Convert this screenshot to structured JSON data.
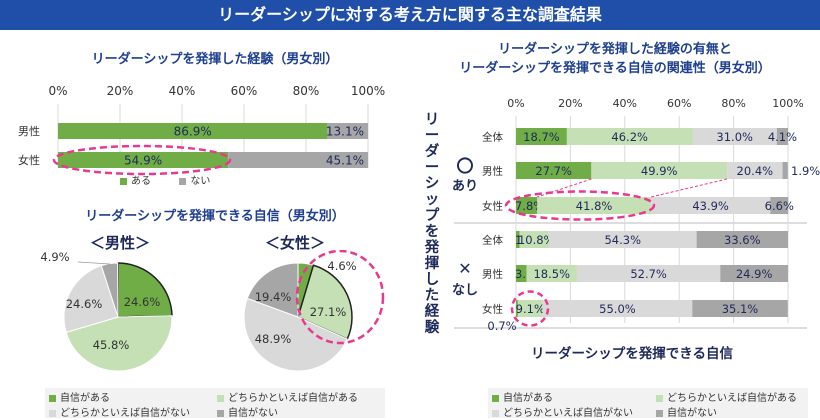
{
  "banner": "リーダーシップに対する考え方に関する主な調査結果",
  "chart1": {
    "title": "リーダーシップを発揮した経験（男女別）",
    "legend": [
      "ある",
      "ない"
    ]
  },
  "chart2": {
    "title": "リーダーシップを発揮できる自信（男女別）",
    "male_label": "＜男性＞",
    "female_label": "＜女性＞"
  },
  "chart3": {
    "title_line1": "リーダーシップを発揮した経験の有無と",
    "title_line2": "リーダーシップを発揮できる自信の関連性（男女別）",
    "y_title": "リーダーシップを発揮した経験",
    "group_yes": "〇 あり",
    "group_no": "✕ なし",
    "x_title": "リーダーシップを発揮できる自信"
  },
  "legend_bottom": [
    "自信がある",
    "どちらかといえば自信がある",
    "どちらかといえば自信がない",
    "自信がない"
  ],
  "colors": {
    "green": "#70ad47",
    "lightgreen": "#c5e0b4",
    "lightgray": "#d9d9d9",
    "gray": "#a6a6a6",
    "pink": "#e8398f",
    "banner": "#1f4fa8"
  },
  "chart_data": [
    {
      "type": "bar",
      "orientation": "horizontal-stacked",
      "title": "リーダーシップを発揮した経験（男女別）",
      "categories": [
        "男性",
        "女性"
      ],
      "series": [
        {
          "name": "ある",
          "values": [
            86.9,
            54.9
          ]
        },
        {
          "name": "ない",
          "values": [
            13.1,
            45.1
          ]
        }
      ],
      "x_ticks": [
        "0%",
        "20%",
        "40%",
        "60%",
        "80%",
        "100%"
      ],
      "xlim": [
        0,
        100
      ]
    },
    {
      "type": "pie",
      "title": "＜男性＞",
      "labels": [
        "自信がある",
        "どちらかといえば自信がある",
        "どちらかといえば自信がない",
        "自信がない"
      ],
      "values": [
        24.6,
        45.8,
        24.6,
        4.9
      ]
    },
    {
      "type": "pie",
      "title": "＜女性＞",
      "labels": [
        "自信がある",
        "どちらかといえば自信がある",
        "どちらかといえば自信がない",
        "自信がない"
      ],
      "values": [
        4.6,
        27.1,
        48.9,
        19.4
      ]
    },
    {
      "type": "bar",
      "orientation": "horizontal-stacked",
      "title": "リーダーシップを発揮した経験の有無とリーダーシップを発揮できる自信の関連性（男女別）",
      "categories": [
        "全体",
        "男性",
        "女性",
        "全体",
        "男性",
        "女性"
      ],
      "groups": [
        "〇 あり",
        "〇 あり",
        "〇 あり",
        "✕ なし",
        "✕ なし",
        "✕ なし"
      ],
      "series": [
        {
          "name": "自信がある",
          "values": [
            18.7,
            27.7,
            7.8,
            1.3,
            3.9,
            0.7
          ]
        },
        {
          "name": "どちらかといえば自信がある",
          "values": [
            46.2,
            49.9,
            41.8,
            10.8,
            18.5,
            9.1
          ]
        },
        {
          "name": "どちらかといえば自信がない",
          "values": [
            31.0,
            20.4,
            43.9,
            54.3,
            52.7,
            55.0
          ]
        },
        {
          "name": "自信がない",
          "values": [
            4.1,
            1.9,
            6.6,
            33.6,
            24.9,
            35.1
          ]
        }
      ],
      "x_ticks": [
        "0%",
        "20%",
        "40%",
        "60%",
        "80%",
        "100%"
      ],
      "xlim": [
        0,
        100
      ]
    }
  ]
}
